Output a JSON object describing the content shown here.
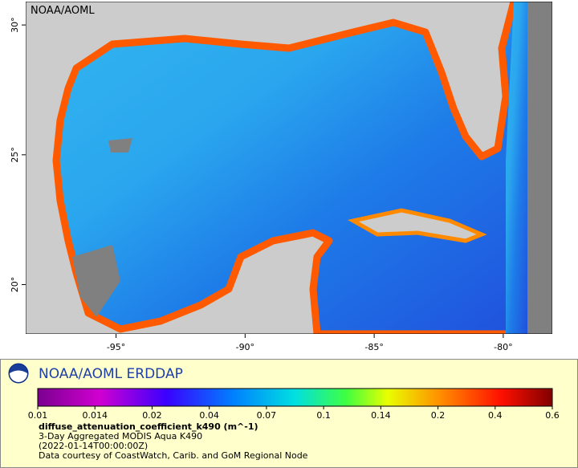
{
  "map": {
    "watermark": "NOAA/AOML",
    "lonlim": [
      -98.5,
      -78.1
    ],
    "latlim": [
      18.1,
      30.9
    ],
    "lon_ticks": [
      {
        "value": -95,
        "label": "-95°"
      },
      {
        "value": -90,
        "label": "-90°"
      },
      {
        "value": -85,
        "label": "-85°"
      },
      {
        "value": -80,
        "label": "-80°"
      }
    ],
    "lat_ticks": [
      {
        "value": 20,
        "label": "20°"
      },
      {
        "value": 25,
        "label": "25°"
      },
      {
        "value": 30,
        "label": "30°"
      }
    ]
  },
  "legend": {
    "title": "NOAA/AOML ERDDAP",
    "colorbar_ticks": [
      0.01,
      0.014,
      0.02,
      0.04,
      0.07,
      0.1,
      0.14,
      0.2,
      0.4,
      0.6
    ],
    "variable": "diffuse_attenuation_coefficient_k490 (m^-1)",
    "lines": [
      "3-Day Aggregated MODIS Aqua K490",
      "(2022-01-14T00:00:00Z)",
      "Data courtesy of CoastWatch, Carib. and GoM Regional Node"
    ]
  }
}
